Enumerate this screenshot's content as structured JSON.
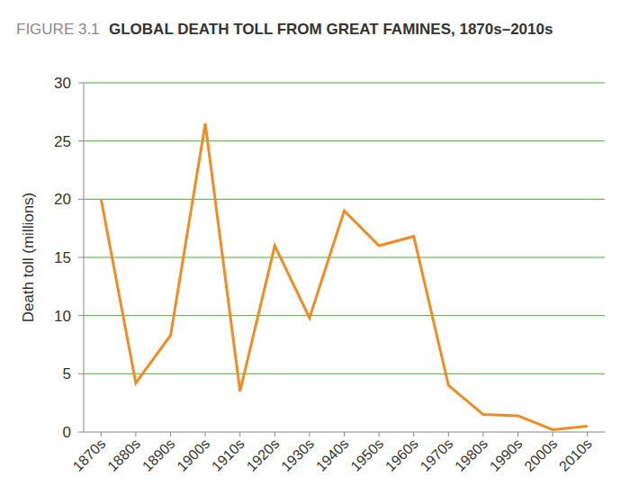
{
  "chart_data": {
    "type": "line",
    "figure_label": "FIGURE 3.1",
    "title": "GLOBAL DEATH TOLL FROM GREAT FAMINES, 1870s–2010s",
    "y_label": "Death toll (millions)",
    "categories": [
      "1870s",
      "1880s",
      "1890s",
      "1900s",
      "1910s",
      "1920s",
      "1930s",
      "1940s",
      "1950s",
      "1960s",
      "1970s",
      "1980s",
      "1990s",
      "2000s",
      "2010s"
    ],
    "values": [
      20,
      4.2,
      8.3,
      26.5,
      3.5,
      16,
      9.8,
      19,
      16,
      16.8,
      4,
      1.5,
      1.4,
      0.2,
      0.5
    ],
    "color": "#ef8c24",
    "ylim": [
      0,
      30
    ],
    "yticks": [
      0,
      5,
      10,
      15,
      20,
      25,
      30
    ],
    "grid": true
  }
}
